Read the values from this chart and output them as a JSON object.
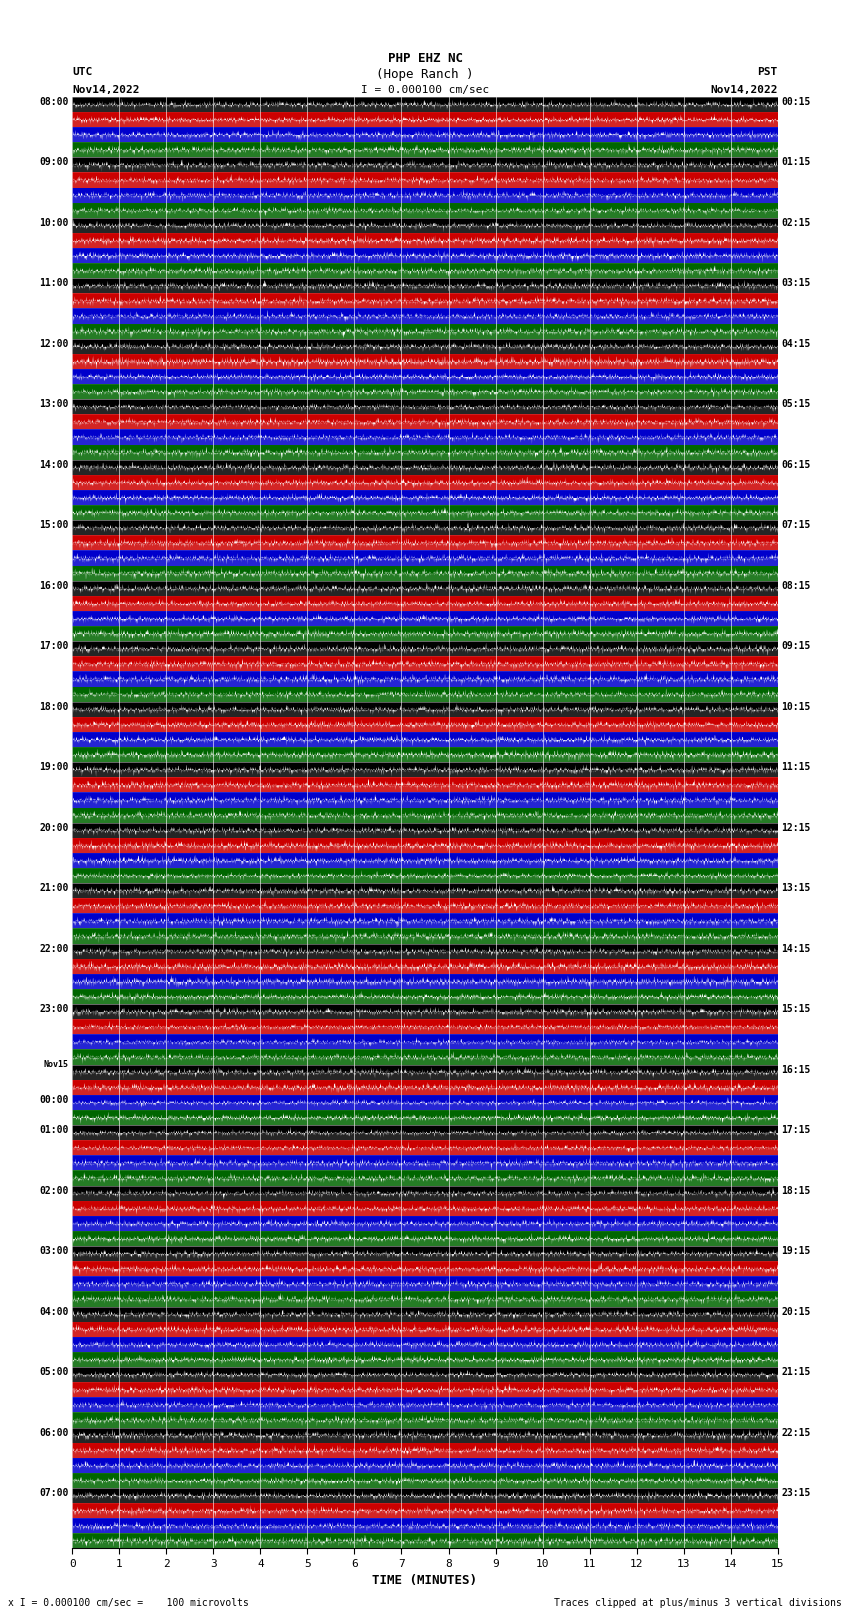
{
  "title_line1": "PHP EHZ NC",
  "title_line2": "(Hope Ranch )",
  "scale_text": "I = 0.000100 cm/sec",
  "left_label_top": "UTC",
  "left_label_date": "Nov14,2022",
  "right_label_top": "PST",
  "right_label_date": "Nov14,2022",
  "xlabel": "TIME (MINUTES)",
  "footer_left": "x I = 0.000100 cm/sec =    100 microvolts",
  "footer_right": "Traces clipped at plus/minus 3 vertical divisions",
  "utc_times": [
    "08:00",
    "09:00",
    "10:00",
    "11:00",
    "12:00",
    "13:00",
    "14:00",
    "15:00",
    "16:00",
    "17:00",
    "18:00",
    "19:00",
    "20:00",
    "21:00",
    "22:00",
    "23:00",
    "Nov15\n00:00",
    "01:00",
    "02:00",
    "03:00",
    "04:00",
    "05:00",
    "06:00",
    "07:00"
  ],
  "pst_times": [
    "00:15",
    "01:15",
    "02:15",
    "03:15",
    "04:15",
    "05:15",
    "06:15",
    "07:15",
    "08:15",
    "09:15",
    "10:15",
    "11:15",
    "12:15",
    "13:15",
    "14:15",
    "15:15",
    "16:15",
    "17:15",
    "18:15",
    "19:15",
    "20:15",
    "21:15",
    "22:15",
    "23:15"
  ],
  "n_rows": 24,
  "x_ticks": [
    0,
    1,
    2,
    3,
    4,
    5,
    6,
    7,
    8,
    9,
    10,
    11,
    12,
    13,
    14,
    15
  ],
  "strip_colors": [
    "#000000",
    "#cc0000",
    "#0000cc",
    "#006600"
  ],
  "n_strips": 4,
  "seed": 42,
  "bg_color": "#ffffff",
  "trace_color": "#ffffff",
  "grid_color": "#ffffff"
}
